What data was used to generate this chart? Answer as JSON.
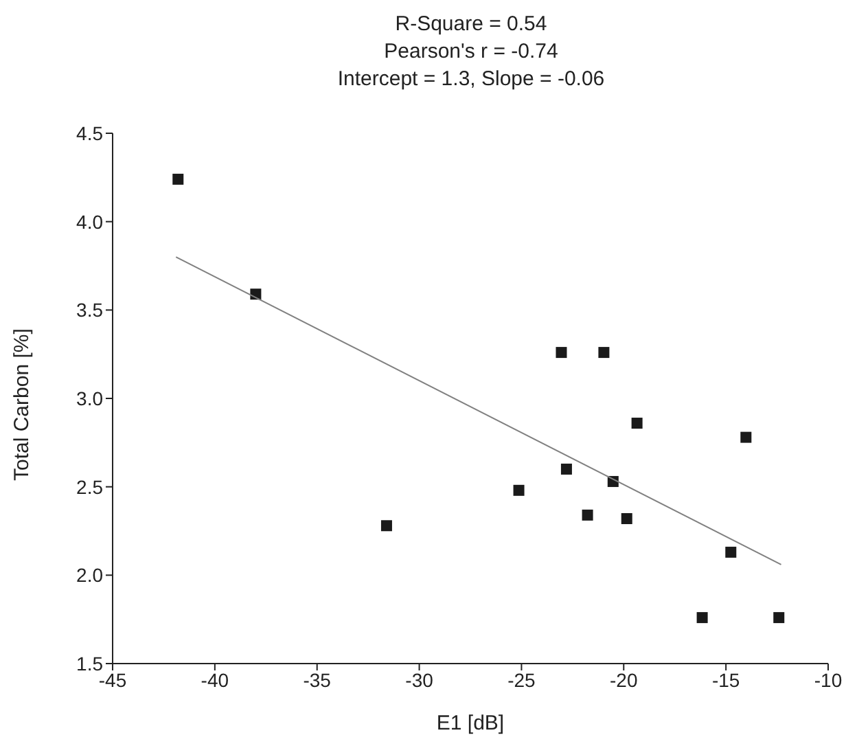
{
  "chart_data": {
    "type": "scatter",
    "title": "R-Square = 0.54\nPearson's r = -0.74\nIntercept = 1.3, Slope = -0.06",
    "xlabel": "E1 [dB]",
    "ylabel": "Total Carbon [%]",
    "xlim": [
      -45,
      -10
    ],
    "xticks": [
      -45,
      -40,
      -35,
      -30,
      -25,
      -20,
      -15,
      -10
    ],
    "ylim": [
      1.5,
      4.5
    ],
    "yticks": [
      1.5,
      {
        "value": 2,
        "label": "2.0"
      },
      2.5,
      {
        "value": 3,
        "label": "3.0"
      },
      3.5,
      {
        "value": 4,
        "label": "4.0"
      },
      4.5
    ],
    "series": [
      {
        "marker": "square",
        "color": "#1a1a1a",
        "x": [
          -41.8,
          -38.0,
          -31.6,
          -23.05,
          -20.97,
          -19.35,
          -14.02,
          -22.8,
          -20.52,
          -25.13,
          -21.77,
          -19.85,
          -14.76,
          -16.16,
          -12.41
        ],
        "values": [
          4.24,
          3.59,
          2.28,
          3.26,
          3.26,
          2.86,
          2.78,
          2.6,
          2.53,
          2.48,
          2.34,
          2.32,
          2.13,
          1.76,
          1.76
        ]
      },
      {
        "type": "line",
        "marker": "none",
        "color": "#808080",
        "x": [
          -41.9,
          -12.3
        ],
        "values": [
          3.8,
          2.06
        ]
      }
    ]
  }
}
